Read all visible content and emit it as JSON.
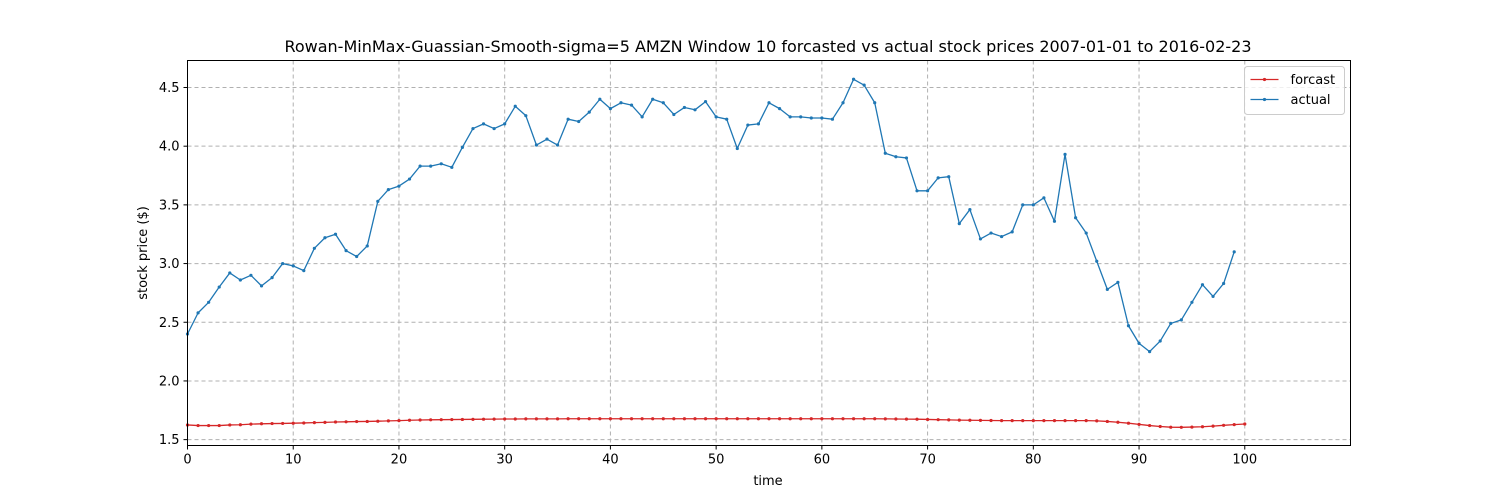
{
  "chart_data": {
    "type": "line",
    "title": "Rowan-MinMax-Guassian-Smooth-sigma=5 AMZN Window 10 forcasted vs actual stock prices 2007-01-01 to 2016-02-23",
    "xlabel": "time",
    "ylabel": "stock price ($)",
    "xlim": [
      0,
      110
    ],
    "ylim": [
      1.45,
      4.73
    ],
    "xticks": [
      0,
      10,
      20,
      30,
      40,
      50,
      60,
      70,
      80,
      90,
      100
    ],
    "yticks": [
      1.5,
      2.0,
      2.5,
      3.0,
      3.5,
      4.0,
      4.5
    ],
    "xtick_labels": [
      "0",
      "10",
      "20",
      "30",
      "40",
      "50",
      "60",
      "70",
      "80",
      "90",
      "100"
    ],
    "ytick_labels": [
      "1.5",
      "2.0",
      "2.5",
      "3.0",
      "3.5",
      "4.0",
      "4.5"
    ],
    "grid": true,
    "legend_position": "top-right",
    "series": [
      {
        "name": "forcast",
        "color": "#d62728",
        "values": [
          1.625,
          1.62,
          1.62,
          1.62,
          1.625,
          1.627,
          1.632,
          1.635,
          1.637,
          1.638,
          1.64,
          1.642,
          1.645,
          1.647,
          1.65,
          1.652,
          1.654,
          1.655,
          1.657,
          1.66,
          1.662,
          1.665,
          1.667,
          1.669,
          1.67,
          1.671,
          1.672,
          1.673,
          1.674,
          1.675,
          1.676,
          1.676,
          1.677,
          1.677,
          1.677,
          1.677,
          1.678,
          1.678,
          1.678,
          1.678,
          1.678,
          1.678,
          1.678,
          1.678,
          1.678,
          1.678,
          1.678,
          1.678,
          1.678,
          1.678,
          1.678,
          1.678,
          1.678,
          1.678,
          1.678,
          1.678,
          1.678,
          1.678,
          1.678,
          1.678,
          1.678,
          1.678,
          1.678,
          1.678,
          1.678,
          1.678,
          1.677,
          1.676,
          1.675,
          1.674,
          1.672,
          1.67,
          1.668,
          1.666,
          1.665,
          1.664,
          1.663,
          1.662,
          1.662,
          1.662,
          1.662,
          1.662,
          1.662,
          1.662,
          1.662,
          1.662,
          1.66,
          1.655,
          1.648,
          1.64,
          1.63,
          1.62,
          1.612,
          1.606,
          1.605,
          1.607,
          1.61,
          1.615,
          1.622,
          1.628,
          1.633
        ]
      },
      {
        "name": "actual",
        "color": "#1f77b4",
        "values": [
          2.4,
          2.58,
          2.67,
          2.8,
          2.92,
          2.86,
          2.9,
          2.81,
          2.88,
          3.0,
          2.98,
          2.94,
          3.13,
          3.22,
          3.25,
          3.11,
          3.06,
          3.15,
          3.53,
          3.63,
          3.66,
          3.72,
          3.83,
          3.83,
          3.85,
          3.82,
          3.99,
          4.15,
          4.19,
          4.15,
          4.19,
          4.34,
          4.26,
          4.01,
          4.06,
          4.01,
          4.23,
          4.21,
          4.29,
          4.4,
          4.32,
          4.37,
          4.35,
          4.25,
          4.4,
          4.37,
          4.27,
          4.33,
          4.31,
          4.38,
          4.25,
          4.23,
          3.98,
          4.18,
          4.19,
          4.37,
          4.32,
          4.25,
          4.25,
          4.24,
          4.24,
          4.23,
          4.37,
          4.57,
          4.52,
          4.37,
          3.94,
          3.91,
          3.9,
          3.62,
          3.62,
          3.73,
          3.74,
          3.34,
          3.46,
          3.21,
          3.26,
          3.23,
          3.27,
          3.5,
          3.5,
          3.56,
          3.36,
          3.93,
          3.39,
          3.26,
          3.02,
          2.78,
          2.84,
          2.47,
          2.32,
          2.25,
          2.34,
          2.49,
          2.52,
          2.67,
          2.82,
          2.72,
          2.83,
          3.1
        ]
      }
    ]
  }
}
